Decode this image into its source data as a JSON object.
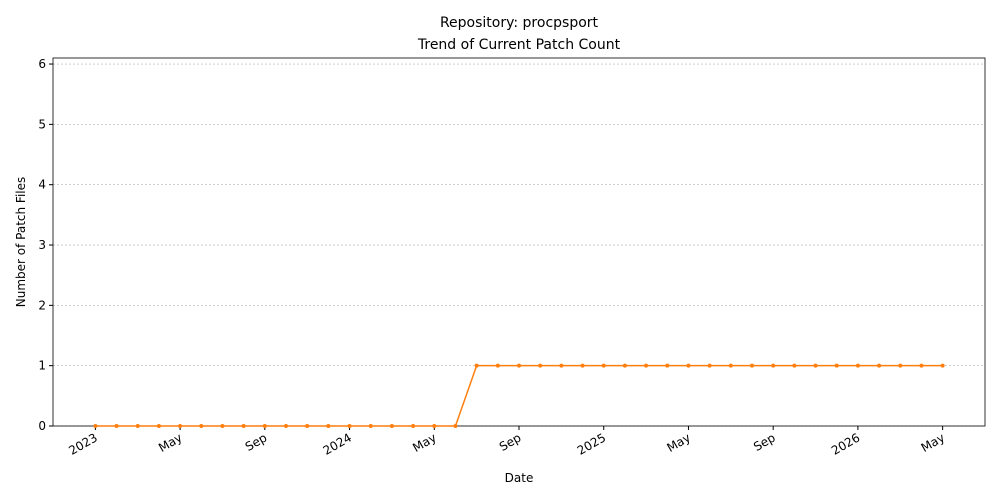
{
  "chart_data": {
    "type": "line",
    "title": "Repository: procpsport",
    "subtitle": "Trend of Current Patch Count",
    "x_label": "Date",
    "y_label": "Number of Patch Files",
    "x": [
      "2023-01",
      "2023-02",
      "2023-03",
      "2023-04",
      "2023-05",
      "2023-06",
      "2023-07",
      "2023-08",
      "2023-09",
      "2023-10",
      "2023-11",
      "2023-12",
      "2024-01",
      "2024-02",
      "2024-03",
      "2024-04",
      "2024-05",
      "2024-06",
      "2024-07",
      "2024-08",
      "2024-09",
      "2024-10",
      "2024-11",
      "2024-12",
      "2025-01",
      "2025-02",
      "2025-03",
      "2025-04",
      "2025-05",
      "2025-06",
      "2025-07",
      "2025-08",
      "2025-09",
      "2025-10",
      "2025-11",
      "2025-12",
      "2026-01",
      "2026-02",
      "2026-03",
      "2026-04",
      "2026-05"
    ],
    "series": [
      {
        "name": "Patch count",
        "color": "#ff7f0e",
        "values": [
          0,
          0,
          0,
          0,
          0,
          0,
          0,
          0,
          0,
          0,
          0,
          0,
          0,
          0,
          0,
          0,
          0,
          0,
          1,
          1,
          1,
          1,
          1,
          1,
          1,
          1,
          1,
          1,
          1,
          1,
          1,
          1,
          1,
          1,
          1,
          1,
          1,
          1,
          1,
          1,
          1
        ]
      }
    ],
    "xlim": [
      "2022-11",
      "2026-07"
    ],
    "xticks": [
      {
        "value": "2023-01",
        "label": "2023"
      },
      {
        "value": "2023-05",
        "label": "May"
      },
      {
        "value": "2023-09",
        "label": "Sep"
      },
      {
        "value": "2024-01",
        "label": "2024"
      },
      {
        "value": "2024-05",
        "label": "May"
      },
      {
        "value": "2024-09",
        "label": "Sep"
      },
      {
        "value": "2025-01",
        "label": "2025"
      },
      {
        "value": "2025-05",
        "label": "May"
      },
      {
        "value": "2025-09",
        "label": "Sep"
      },
      {
        "value": "2026-01",
        "label": "2026"
      },
      {
        "value": "2026-05",
        "label": "May"
      }
    ],
    "ylim": [
      0,
      6.1
    ],
    "yticks": [
      0,
      1,
      2,
      3,
      4,
      5,
      6
    ],
    "grid": true
  }
}
